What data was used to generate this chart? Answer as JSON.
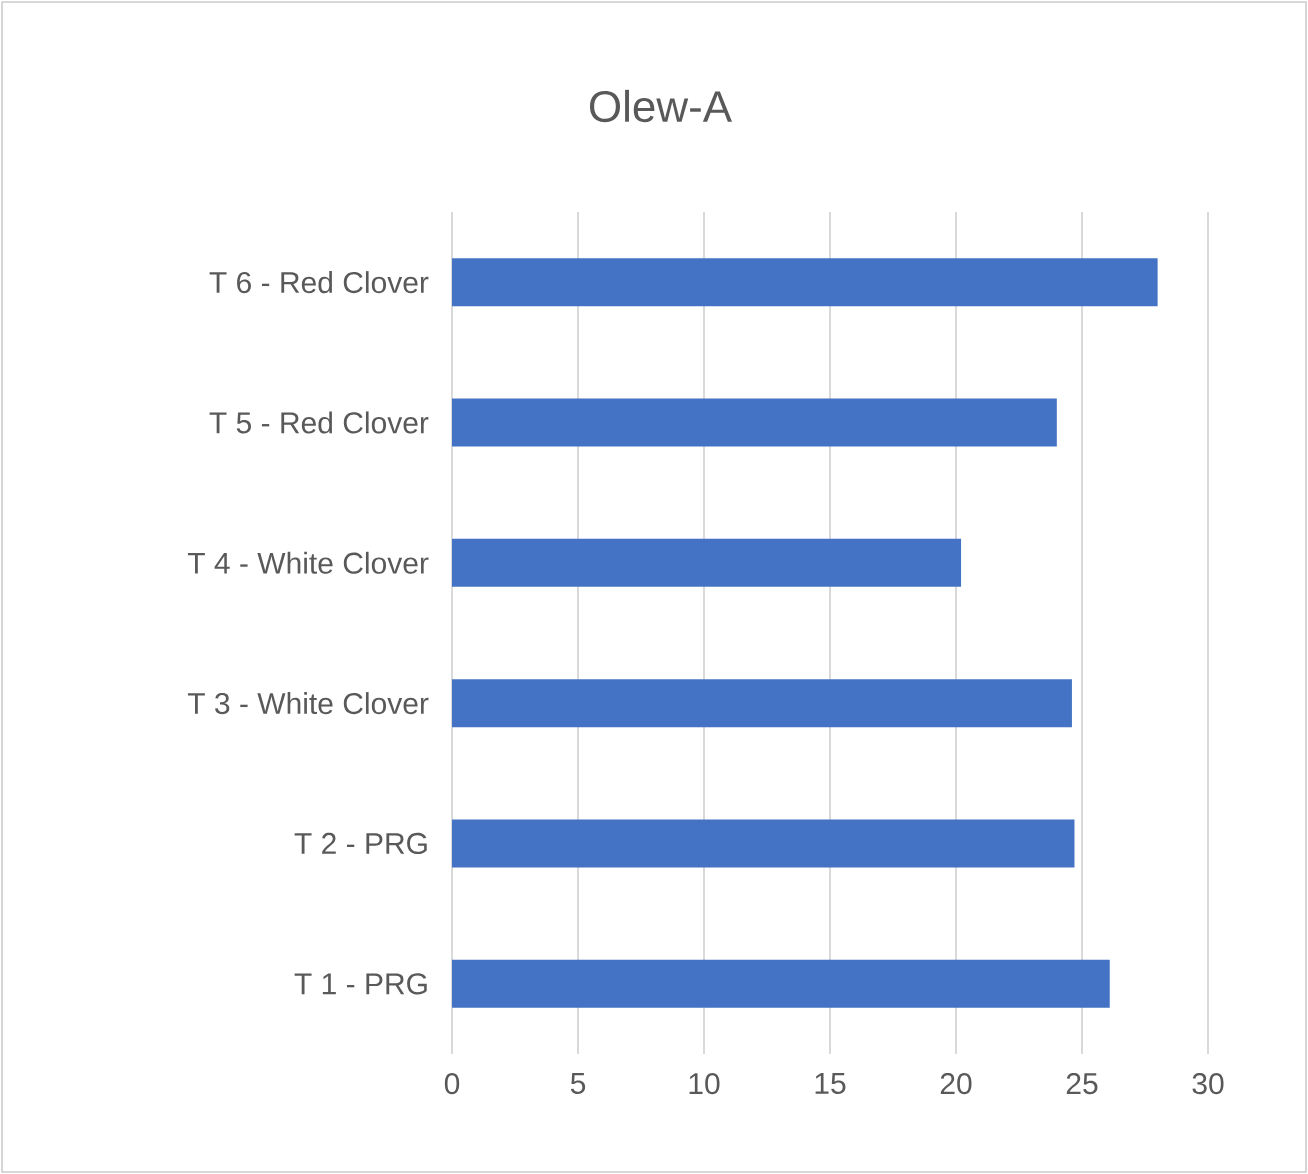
{
  "chart_data": {
    "type": "bar",
    "orientation": "horizontal",
    "title": "Olew-A",
    "categories": [
      "T 6 - Red Clover",
      "T 5 - Red Clover",
      "T 4 - White Clover",
      "T 3 - White Clover",
      "T 2 - PRG",
      "T 1 - PRG"
    ],
    "values": [
      28,
      24,
      20.2,
      24.6,
      24.7,
      26.1
    ],
    "color": "#4472c4",
    "xlim": [
      0,
      30
    ],
    "xticks": [
      0,
      5,
      10,
      15,
      20,
      25,
      30
    ],
    "grid": "x"
  }
}
